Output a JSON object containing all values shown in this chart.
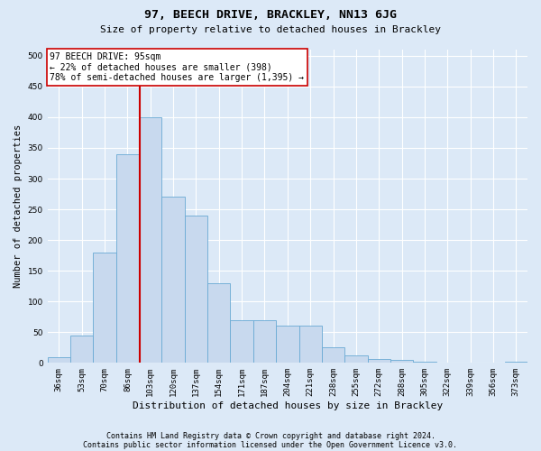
{
  "title": "97, BEECH DRIVE, BRACKLEY, NN13 6JG",
  "subtitle": "Size of property relative to detached houses in Brackley",
  "xlabel": "Distribution of detached houses by size in Brackley",
  "ylabel": "Number of detached properties",
  "footer_line1": "Contains HM Land Registry data © Crown copyright and database right 2024.",
  "footer_line2": "Contains public sector information licensed under the Open Government Licence v3.0.",
  "annotation_title": "97 BEECH DRIVE: 95sqm",
  "annotation_line1": "← 22% of detached houses are smaller (398)",
  "annotation_line2": "78% of semi-detached houses are larger (1,395) →",
  "bar_color": "#c8d9ee",
  "bar_edge_color": "#6aaad4",
  "vline_color": "#cc0000",
  "background_color": "#dce9f7",
  "categories": [
    "36sqm",
    "53sqm",
    "70sqm",
    "86sqm",
    "103sqm",
    "120sqm",
    "137sqm",
    "154sqm",
    "171sqm",
    "187sqm",
    "204sqm",
    "221sqm",
    "238sqm",
    "255sqm",
    "272sqm",
    "288sqm",
    "305sqm",
    "322sqm",
    "339sqm",
    "356sqm",
    "373sqm"
  ],
  "values": [
    10,
    45,
    180,
    340,
    400,
    270,
    240,
    130,
    70,
    70,
    60,
    60,
    25,
    12,
    7,
    5,
    2,
    1,
    1,
    0,
    2
  ],
  "vline_index": 3.55,
  "ylim": [
    0,
    510
  ],
  "yticks": [
    0,
    50,
    100,
    150,
    200,
    250,
    300,
    350,
    400,
    450,
    500
  ],
  "grid_color": "#ffffff",
  "annotation_box_facecolor": "#ffffff",
  "annotation_box_edgecolor": "#cc0000"
}
